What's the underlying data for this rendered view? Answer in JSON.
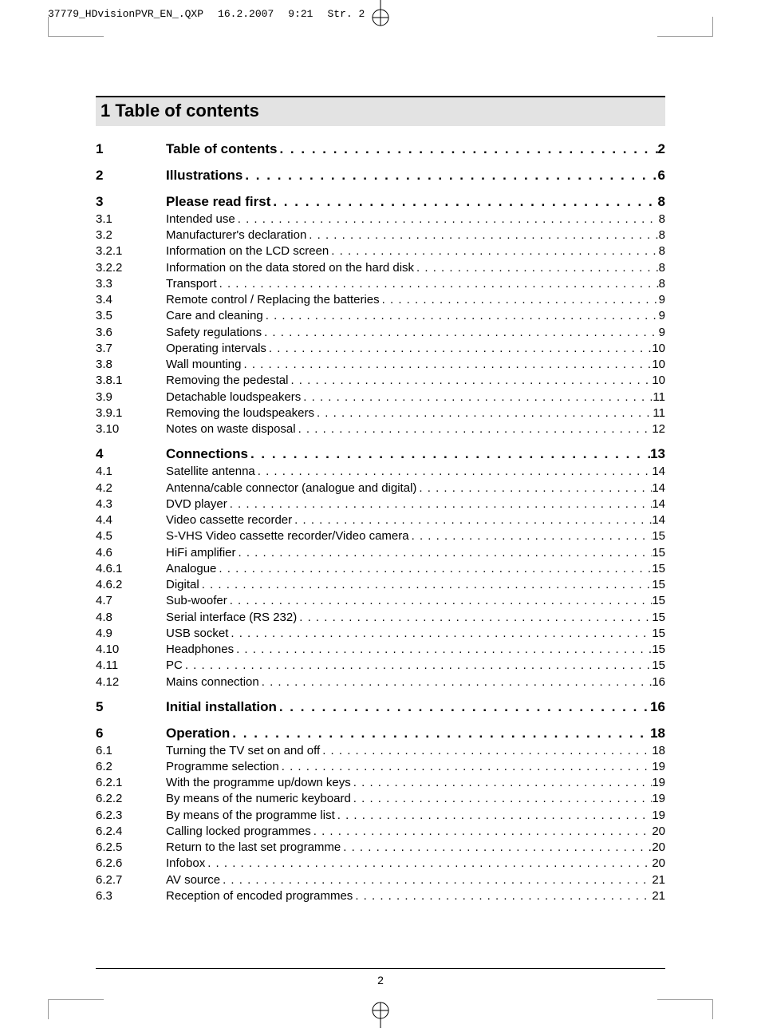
{
  "meta": {
    "filename": "37779_HDvisionPVR_EN_.QXP",
    "date": "16.2.2007",
    "time": "9:21",
    "pageref": "Str. 2"
  },
  "heading": "1 Table of contents",
  "page_number": "2",
  "leader_dots_regular": " . . . . . . . . . . . . . . . . . . . . . . . . . . . . . . . . . . . . . . . . . . . . . . . . . . . . . . . . . . . . . . . . . . . . . . . . . . . . . . . . . . . . . . . . . . . . . . . . . . . .",
  "leader_dots_bold": "  . . . . . . . . . . . . . . . . . . . . . . . . . . . . . . . . . . . . . . . . . . . . . . . . . . . . . . . . . . . .",
  "entries": [
    {
      "n": "1",
      "label": "Table of contents",
      "p": "2",
      "head": true
    },
    {
      "gap": true
    },
    {
      "n": "2",
      "label": "Illustrations",
      "p": "6",
      "head": true
    },
    {
      "gap": true
    },
    {
      "n": "3",
      "label": "Please read first",
      "p": "8",
      "head": true
    },
    {
      "n": "3.1",
      "label": "Intended use",
      "p": "8"
    },
    {
      "n": "3.2",
      "label": "Manufacturer's declaration",
      "p": "8"
    },
    {
      "n": "3.2.1",
      "label": "Information on the LCD screen",
      "p": "8"
    },
    {
      "n": "3.2.2",
      "label": "Information on the data stored on the hard disk",
      "p": "8"
    },
    {
      "n": "3.3",
      "label": "Transport",
      "p": "8"
    },
    {
      "n": "3.4",
      "label": "Remote control / Replacing the batteries",
      "p": "9"
    },
    {
      "n": "3.5",
      "label": "Care and cleaning",
      "p": "9"
    },
    {
      "n": "3.6",
      "label": "Safety regulations",
      "p": "9"
    },
    {
      "n": "3.7",
      "label": "Operating intervals",
      "p": "10"
    },
    {
      "n": "3.8",
      "label": "Wall mounting",
      "p": "10"
    },
    {
      "n": "3.8.1",
      "label": "Removing the pedestal",
      "p": "10"
    },
    {
      "n": "3.9",
      "label": "Detachable loudspeakers",
      "p": "11"
    },
    {
      "n": "3.9.1",
      "label": "Removing the loudspeakers",
      "p": "11"
    },
    {
      "n": "3.10",
      "label": "Notes on waste disposal",
      "p": "12"
    },
    {
      "gap": true
    },
    {
      "n": "4",
      "label": "Connections",
      "p": "13",
      "head": true
    },
    {
      "n": "4.1",
      "label": "Satellite antenna",
      "p": "14"
    },
    {
      "n": "4.2",
      "label": "Antenna/cable connector (analogue and digital)",
      "p": "14"
    },
    {
      "n": "4.3",
      "label": "DVD player",
      "p": "14"
    },
    {
      "n": "4.4",
      "label": "Video cassette recorder",
      "p": "14"
    },
    {
      "n": "4.5",
      "label": "S-VHS Video cassette recorder/Video camera",
      "p": "15"
    },
    {
      "n": "4.6",
      "label": "HiFi amplifier",
      "p": "15"
    },
    {
      "n": "4.6.1",
      "label": "Analogue",
      "p": "15"
    },
    {
      "n": "4.6.2",
      "label": "Digital",
      "p": "15"
    },
    {
      "n": "4.7",
      "label": "Sub-woofer",
      "p": "15"
    },
    {
      "n": "4.8",
      "label": "Serial interface (RS 232)",
      "p": "15"
    },
    {
      "n": "4.9",
      "label": "USB socket",
      "p": "15"
    },
    {
      "n": "4.10",
      "label": "Headphones",
      "p": "15"
    },
    {
      "n": "4.11",
      "label": "PC",
      "p": "15"
    },
    {
      "n": "4.12",
      "label": "Mains connection",
      "p": "16"
    },
    {
      "gap": true
    },
    {
      "n": "5",
      "label": "Initial installation",
      "p": "16",
      "head": true
    },
    {
      "gap": true
    },
    {
      "n": "6",
      "label": "Operation",
      "p": "18",
      "head": true
    },
    {
      "n": "6.1",
      "label": "Turning the TV set on and off",
      "p": "18"
    },
    {
      "n": "6.2",
      "label": "Programme selection",
      "p": "19"
    },
    {
      "n": "6.2.1",
      "label": "With the programme up/down keys",
      "p": "19"
    },
    {
      "n": "6.2.2",
      "label": "By means of the numeric keyboard",
      "p": "19"
    },
    {
      "n": "6.2.3",
      "label": "By means of the programme list",
      "p": "19"
    },
    {
      "n": "6.2.4",
      "label": "Calling locked programmes",
      "p": "20"
    },
    {
      "n": "6.2.5",
      "label": "Return to the last set programme",
      "p": "20"
    },
    {
      "n": "6.2.6",
      "label": "Infobox",
      "p": "20"
    },
    {
      "n": "6.2.7",
      "label": "AV source",
      "p": "21"
    },
    {
      "n": "6.3",
      "label": "Reception of encoded programmes",
      "p": "21"
    }
  ]
}
